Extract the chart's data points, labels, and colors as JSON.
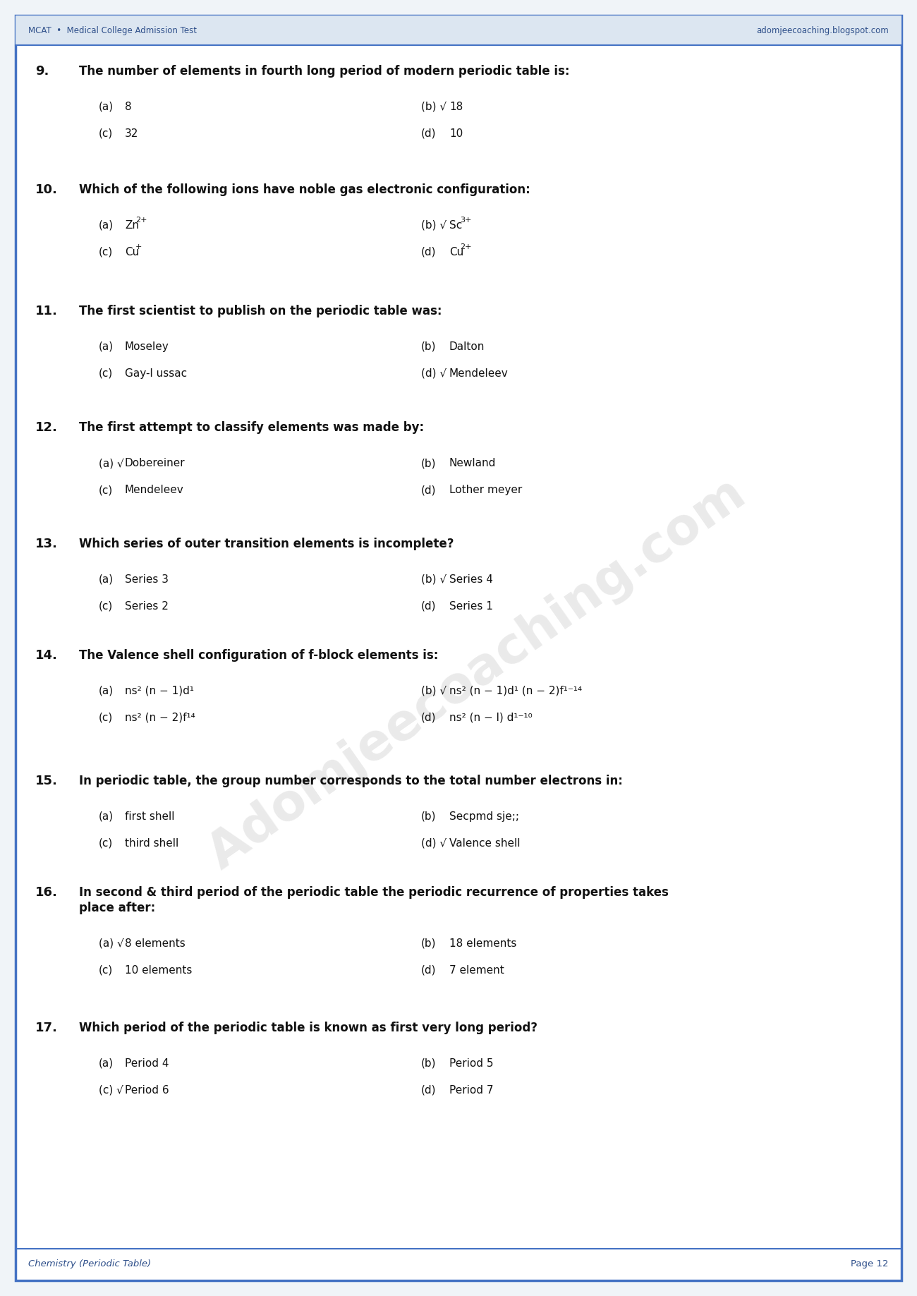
{
  "header_left": "MCAT  •  Medical College Admission Test",
  "header_right": "adomjeecoaching.blogspot.com",
  "footer_left": "Chemistry (Periodic Table)",
  "footer_right": "Page 12",
  "bg_color": "#f0f4f8",
  "page_bg": "#ffffff",
  "border_color": "#4472c4",
  "header_bg": "#dce6f1",
  "questions": [
    {
      "num": "9.",
      "question": "The number of elements in fourth long period of modern periodic table is:",
      "multiline": false,
      "options": [
        {
          "label": "(a)",
          "text": "8",
          "correct": false,
          "row": 0,
          "col": 0
        },
        {
          "label": "(b)",
          "text": "18",
          "correct": true,
          "row": 0,
          "col": 1
        },
        {
          "label": "(c)",
          "text": "32",
          "correct": false,
          "row": 1,
          "col": 0
        },
        {
          "label": "(d)",
          "text": "10",
          "correct": false,
          "row": 1,
          "col": 1
        }
      ]
    },
    {
      "num": "10.",
      "question": "Which of the following ions have noble gas electronic configuration:",
      "multiline": false,
      "options": [
        {
          "label": "(a)",
          "text": "Zn",
          "sup": "2+",
          "correct": false,
          "row": 0,
          "col": 0
        },
        {
          "label": "(b)",
          "text": "Sc",
          "sup": "3+",
          "correct": true,
          "row": 0,
          "col": 1
        },
        {
          "label": "(c)",
          "text": "Cu",
          "sup": "+",
          "correct": false,
          "row": 1,
          "col": 0
        },
        {
          "label": "(d)",
          "text": "Cu",
          "sup": "2+",
          "correct": false,
          "row": 1,
          "col": 1
        }
      ]
    },
    {
      "num": "11.",
      "question": "The first scientist to publish on the periodic table was:",
      "multiline": false,
      "options": [
        {
          "label": "(a)",
          "text": "Moseley",
          "correct": false,
          "row": 0,
          "col": 0
        },
        {
          "label": "(b)",
          "text": "Dalton",
          "correct": false,
          "row": 0,
          "col": 1
        },
        {
          "label": "(c)",
          "text": "Gay-l ussac",
          "correct": false,
          "row": 1,
          "col": 0
        },
        {
          "label": "(d)",
          "text": "Mendeleev",
          "correct": true,
          "row": 1,
          "col": 1
        }
      ]
    },
    {
      "num": "12.",
      "question": "The first attempt to classify elements was made by:",
      "multiline": false,
      "options": [
        {
          "label": "(a)",
          "text": "Dobereiner",
          "correct": true,
          "row": 0,
          "col": 0
        },
        {
          "label": "(b)",
          "text": "Newland",
          "correct": false,
          "row": 0,
          "col": 1
        },
        {
          "label": "(c)",
          "text": "Mendeleev",
          "correct": false,
          "row": 1,
          "col": 0
        },
        {
          "label": "(d)",
          "text": "Lother meyer",
          "correct": false,
          "row": 1,
          "col": 1
        }
      ]
    },
    {
      "num": "13.",
      "question": "Which series of outer transition elements is incomplete?",
      "multiline": false,
      "options": [
        {
          "label": "(a)",
          "text": "Series 3",
          "correct": false,
          "row": 0,
          "col": 0
        },
        {
          "label": "(b)",
          "text": "Series 4",
          "correct": true,
          "row": 0,
          "col": 1
        },
        {
          "label": "(c)",
          "text": "Series 2",
          "correct": false,
          "row": 1,
          "col": 0
        },
        {
          "label": "(d)",
          "text": "Series 1",
          "correct": false,
          "row": 1,
          "col": 1
        }
      ]
    },
    {
      "num": "14.",
      "question": "The Valence shell configuration of f-block elements is:",
      "multiline": false,
      "options": [
        {
          "label": "(a)",
          "text": "ns² (n − 1)d¹",
          "correct": false,
          "row": 0,
          "col": 0
        },
        {
          "label": "(b)",
          "text": "ns² (n − 1)d¹ (n − 2)f¹⁻¹⁴",
          "correct": true,
          "row": 0,
          "col": 1
        },
        {
          "label": "(c)",
          "text": "ns² (n − 2)f¹⁴",
          "correct": false,
          "row": 1,
          "col": 0
        },
        {
          "label": "(d)",
          "text": "ns² (n − l) d¹⁻¹⁰",
          "correct": false,
          "row": 1,
          "col": 1
        }
      ]
    },
    {
      "num": "15.",
      "question": "In periodic table, the group number corresponds to the total number electrons in:",
      "multiline": false,
      "options": [
        {
          "label": "(a)",
          "text": "first shell",
          "correct": false,
          "row": 0,
          "col": 0
        },
        {
          "label": "(b)",
          "text": "Secpmd sje;;",
          "correct": false,
          "row": 0,
          "col": 1
        },
        {
          "label": "(c)",
          "text": "third shell",
          "correct": false,
          "row": 1,
          "col": 0
        },
        {
          "label": "(d)",
          "text": "Valence shell",
          "correct": true,
          "row": 1,
          "col": 1
        }
      ]
    },
    {
      "num": "16.",
      "question": "In second & third period of the periodic table the periodic recurrence of properties takes place after:",
      "multiline": true,
      "options": [
        {
          "label": "(a)",
          "text": "8 elements",
          "correct": true,
          "row": 0,
          "col": 0
        },
        {
          "label": "(b)",
          "text": "18 elements",
          "correct": false,
          "row": 0,
          "col": 1
        },
        {
          "label": "(c)",
          "text": "10 elements",
          "correct": false,
          "row": 1,
          "col": 0
        },
        {
          "label": "(d)",
          "text": "7 element",
          "correct": false,
          "row": 1,
          "col": 1
        }
      ]
    },
    {
      "num": "17.",
      "question": "Which period of the periodic table is known as first very long period?",
      "multiline": false,
      "options": [
        {
          "label": "(a)",
          "text": "Period 4",
          "correct": false,
          "row": 0,
          "col": 0
        },
        {
          "label": "(b)",
          "text": "Period 5",
          "correct": false,
          "row": 0,
          "col": 1
        },
        {
          "label": "(c)",
          "text": "Period 6",
          "correct": true,
          "row": 1,
          "col": 0
        },
        {
          "label": "(d)",
          "text": "Period 7",
          "correct": false,
          "row": 1,
          "col": 1
        }
      ]
    }
  ]
}
